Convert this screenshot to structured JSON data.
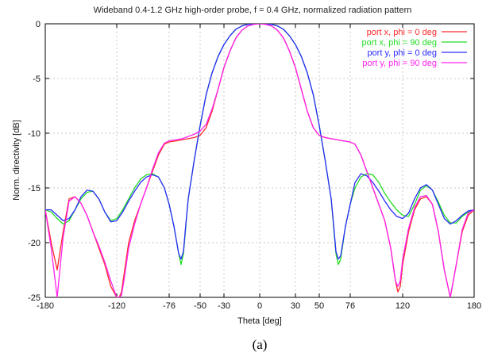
{
  "chart_data": {
    "type": "line",
    "title": "Wideband 0.4-1.2 GHz high-order probe, f = 0.4 GHz, normalized radiation pattern",
    "xlabel": "Theta [deg]",
    "ylabel": "Norm. directivity [dB]",
    "xlim": [
      -180,
      180
    ],
    "ylim": [
      -25,
      0
    ],
    "xticks": [
      -180,
      -120,
      -76,
      -50,
      -30,
      0,
      30,
      50,
      76,
      120,
      180
    ],
    "yticks": [
      0,
      -5,
      -10,
      -15,
      -20,
      -25
    ],
    "grid": true,
    "legend_position": "top-right",
    "caption": "(a)",
    "series": [
      {
        "name": "port x, phi =  0 deg",
        "color": "#ff2a2a",
        "x": [
          -180,
          -175,
          -170,
          -165,
          -160,
          -155,
          -150,
          -145,
          -140,
          -135,
          -130,
          -125,
          -120,
          -118,
          -116,
          -114,
          -112,
          -110,
          -105,
          -100,
          -95,
          -90,
          -85,
          -80,
          -76,
          -70,
          -65,
          -60,
          -55,
          -50,
          -45,
          -40,
          -35,
          -30,
          -25,
          -20,
          -15,
          -10,
          -5,
          0,
          5,
          10,
          15,
          20,
          25,
          30,
          35,
          40,
          45,
          50,
          55,
          60,
          65,
          70,
          76,
          80,
          85,
          90,
          95,
          100,
          105,
          110,
          112,
          114,
          116,
          118,
          120,
          125,
          130,
          135,
          140,
          145,
          150,
          155,
          160,
          165,
          170,
          175,
          180
        ],
        "y": [
          -17,
          -20,
          -22.5,
          -19,
          -16,
          -15.8,
          -16.4,
          -17.5,
          -19,
          -20.5,
          -22,
          -24,
          -25,
          -25,
          -24.5,
          -23,
          -21.5,
          -20,
          -18,
          -16.5,
          -15,
          -13.5,
          -12,
          -11,
          -10.8,
          -10.7,
          -10.6,
          -10.5,
          -10.4,
          -10.2,
          -9.5,
          -8,
          -6,
          -4,
          -2.5,
          -1.3,
          -0.6,
          -0.2,
          -0.05,
          0,
          -0.05,
          -0.2,
          -0.6,
          -1.3,
          -2.5,
          -4,
          -6,
          -8,
          -9.5,
          -10.2,
          -10.4,
          -10.5,
          -10.6,
          -10.7,
          -10.8,
          -11,
          -12,
          -13.5,
          -15,
          -16.5,
          -18,
          -20.5,
          -22,
          -23.5,
          -24.5,
          -24,
          -22,
          -19,
          -17,
          -16,
          -15.8,
          -16.5,
          -19,
          -22.5,
          -25,
          -22,
          -19,
          -17.5,
          -17
        ]
      },
      {
        "name": "port x, phi = 90 deg",
        "color": "#22dd22",
        "x": [
          -180,
          -175,
          -170,
          -165,
          -160,
          -155,
          -150,
          -145,
          -140,
          -135,
          -130,
          -125,
          -120,
          -115,
          -110,
          -105,
          -100,
          -95,
          -90,
          -85,
          -80,
          -76,
          -72,
          -68,
          -66,
          -64,
          -62,
          -60,
          -55,
          -50,
          -45,
          -40,
          -35,
          -30,
          -25,
          -20,
          -15,
          -10,
          -5,
          0,
          5,
          10,
          15,
          20,
          25,
          30,
          35,
          40,
          45,
          50,
          55,
          60,
          62,
          64,
          66,
          68,
          72,
          76,
          80,
          85,
          90,
          95,
          100,
          105,
          110,
          115,
          120,
          125,
          130,
          135,
          140,
          145,
          150,
          155,
          160,
          165,
          170,
          175,
          180
        ],
        "y": [
          -17,
          -17.2,
          -17.8,
          -18.3,
          -18,
          -17,
          -16,
          -15.4,
          -15.3,
          -16,
          -17.2,
          -18,
          -17.8,
          -17,
          -16,
          -15,
          -14.2,
          -13.8,
          -13.7,
          -14,
          -15,
          -16.5,
          -18.5,
          -21,
          -22,
          -21,
          -18.5,
          -16,
          -12.5,
          -9.3,
          -6.5,
          -4.5,
          -3,
          -1.9,
          -1.1,
          -0.5,
          -0.2,
          -0.05,
          0,
          0,
          0,
          -0.05,
          -0.2,
          -0.5,
          -1.1,
          -1.9,
          -3,
          -4.5,
          -6.5,
          -9.3,
          -12.5,
          -16,
          -18.5,
          -21,
          -22,
          -21.5,
          -18.5,
          -16.5,
          -15,
          -14,
          -13.7,
          -13.8,
          -14.5,
          -15.5,
          -16.3,
          -17,
          -17.5,
          -17.6,
          -16.5,
          -15.2,
          -14.8,
          -15.2,
          -16.3,
          -17.5,
          -18.2,
          -18.2,
          -17.6,
          -17.2,
          -17
        ]
      },
      {
        "name": "port y, phi =  0 deg",
        "color": "#2a2aff",
        "x": [
          -180,
          -175,
          -170,
          -165,
          -160,
          -155,
          -150,
          -145,
          -140,
          -135,
          -130,
          -125,
          -120,
          -115,
          -110,
          -105,
          -100,
          -95,
          -90,
          -85,
          -80,
          -76,
          -72,
          -68,
          -66,
          -64,
          -62,
          -60,
          -55,
          -50,
          -45,
          -40,
          -35,
          -30,
          -25,
          -20,
          -15,
          -10,
          -5,
          0,
          5,
          10,
          15,
          20,
          25,
          30,
          35,
          40,
          45,
          50,
          55,
          60,
          62,
          64,
          66,
          68,
          72,
          76,
          80,
          85,
          90,
          95,
          100,
          105,
          110,
          115,
          120,
          125,
          130,
          135,
          140,
          145,
          150,
          155,
          160,
          165,
          170,
          175,
          180
        ],
        "y": [
          -17,
          -17,
          -17.5,
          -18,
          -17.8,
          -17,
          -15.8,
          -15.2,
          -15.3,
          -16,
          -17.2,
          -18.1,
          -18,
          -17.2,
          -16.2,
          -15.3,
          -14.5,
          -14,
          -13.8,
          -14,
          -15,
          -16.5,
          -18.5,
          -21,
          -21.5,
          -20.8,
          -18.3,
          -16,
          -12.5,
          -9.3,
          -6.5,
          -4.5,
          -3,
          -1.9,
          -1.1,
          -0.5,
          -0.2,
          -0.05,
          0,
          0,
          0,
          -0.05,
          -0.2,
          -0.5,
          -1.1,
          -1.9,
          -3,
          -4.5,
          -6.5,
          -9.3,
          -12.5,
          -16,
          -18.3,
          -20.8,
          -21.5,
          -21.2,
          -18.5,
          -16.5,
          -14.5,
          -13.7,
          -13.9,
          -14.5,
          -15.3,
          -16.2,
          -17,
          -17.6,
          -17.8,
          -17.3,
          -16,
          -15,
          -14.7,
          -15.2,
          -16.5,
          -17.8,
          -18.3,
          -18,
          -17.5,
          -17.1,
          -17
        ]
      },
      {
        "name": "port y, phi = 90 deg",
        "color": "#ff22ee",
        "x": [
          -180,
          -175,
          -170,
          -165,
          -160,
          -155,
          -150,
          -145,
          -140,
          -135,
          -130,
          -125,
          -120,
          -118,
          -116,
          -114,
          -112,
          -110,
          -105,
          -100,
          -95,
          -90,
          -85,
          -80,
          -76,
          -70,
          -65,
          -60,
          -55,
          -50,
          -45,
          -40,
          -35,
          -30,
          -25,
          -20,
          -15,
          -10,
          -5,
          0,
          5,
          10,
          15,
          20,
          25,
          30,
          35,
          40,
          45,
          50,
          55,
          60,
          65,
          70,
          76,
          80,
          85,
          90,
          95,
          100,
          105,
          110,
          112,
          114,
          116,
          118,
          120,
          125,
          130,
          135,
          140,
          145,
          150,
          155,
          160,
          165,
          170,
          175,
          180
        ],
        "y": [
          -17,
          -20.5,
          -25,
          -19.5,
          -16.2,
          -15.8,
          -16.4,
          -17.5,
          -19,
          -20.3,
          -21.8,
          -23.5,
          -25,
          -25,
          -24.8,
          -23.5,
          -22,
          -20.5,
          -18.3,
          -16.5,
          -15,
          -13.3,
          -11.8,
          -10.9,
          -10.7,
          -10.6,
          -10.5,
          -10.3,
          -10.1,
          -9.8,
          -9.2,
          -7.8,
          -6,
          -4,
          -2.5,
          -1.3,
          -0.6,
          -0.2,
          -0.05,
          0,
          -0.05,
          -0.2,
          -0.6,
          -1.3,
          -2.5,
          -4,
          -6,
          -8,
          -9.5,
          -10.2,
          -10.4,
          -10.5,
          -10.6,
          -10.7,
          -10.8,
          -11,
          -12,
          -13.5,
          -15,
          -16.5,
          -18,
          -20.5,
          -22,
          -23.5,
          -24,
          -23.5,
          -21.5,
          -18.7,
          -16.8,
          -15.8,
          -15.7,
          -16.5,
          -19,
          -22.5,
          -25,
          -22,
          -18.8,
          -17.3,
          -17
        ]
      }
    ]
  }
}
